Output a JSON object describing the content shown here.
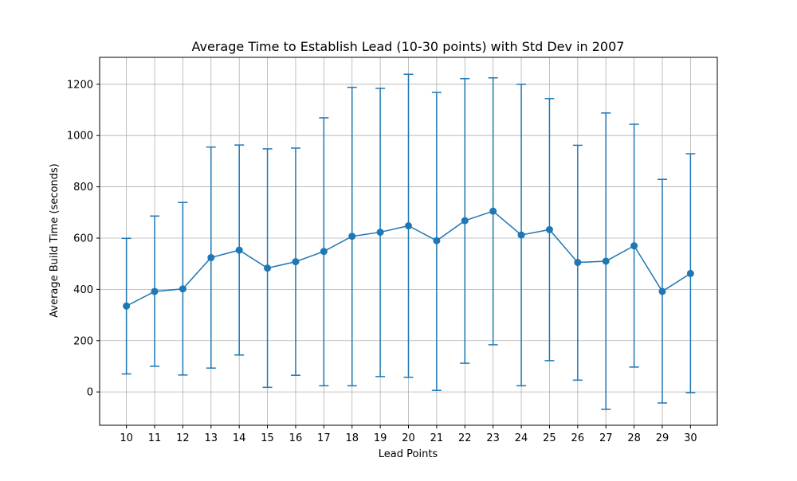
{
  "chart_data": {
    "type": "line",
    "title": "Average Time to Establish Lead (10-30 points) with Std Dev in 2007",
    "xlabel": "Lead Points",
    "ylabel": "Average Build Time (seconds)",
    "x": [
      10,
      11,
      12,
      13,
      14,
      15,
      16,
      17,
      18,
      19,
      20,
      21,
      22,
      23,
      24,
      25,
      26,
      27,
      28,
      29,
      30
    ],
    "xticks": [
      "10",
      "11",
      "12",
      "13",
      "14",
      "15",
      "16",
      "17",
      "18",
      "19",
      "20",
      "21",
      "22",
      "23",
      "24",
      "25",
      "26",
      "27",
      "28",
      "29",
      "30"
    ],
    "yticks": [
      0,
      200,
      400,
      600,
      800,
      1000,
      1200
    ],
    "ytick_labels": [
      "0",
      "200",
      "400",
      "600",
      "800",
      "1000",
      "1200"
    ],
    "xlim": [
      9.05,
      30.95
    ],
    "ylim": [
      -130,
      1305
    ],
    "grid": true,
    "series": [
      {
        "values": [
          335,
          392,
          402,
          524,
          553,
          483,
          508,
          548,
          607,
          623,
          648,
          590,
          668,
          705,
          612,
          633,
          505,
          510,
          570,
          392,
          462
        ],
        "error_low": [
          70,
          100,
          66,
          93,
          144,
          18,
          65,
          24,
          24,
          60,
          57,
          6,
          112,
          184,
          24,
          122,
          46,
          -68,
          97,
          -43,
          -3
        ],
        "error_high": [
          599,
          686,
          739,
          955,
          963,
          948,
          951,
          1069,
          1188,
          1184,
          1239,
          1168,
          1222,
          1225,
          1200,
          1144,
          962,
          1088,
          1044,
          829,
          929
        ],
        "color": "#1f77b4"
      }
    ]
  }
}
